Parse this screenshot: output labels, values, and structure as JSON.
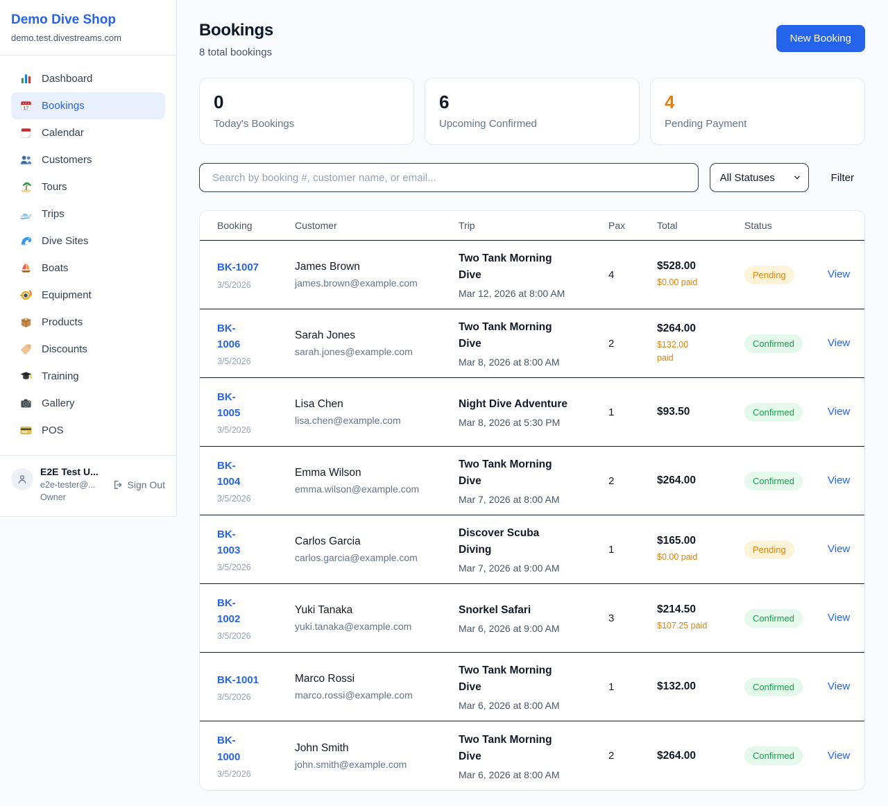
{
  "colors": {
    "accent": "#2563eb",
    "accent_bg": "#e8effd",
    "warn": "#de830e",
    "warn_bg": "#fdf3d8",
    "success": "#16a34a",
    "success_bg": "#e5f8ec",
    "row_divider": "#0f172a",
    "card_border": "#e2e8f0",
    "page_bg": "#f8fafc"
  },
  "sidebar": {
    "brand": {
      "name": "Demo Dive Shop",
      "domain": "demo.test.divestreams.com"
    },
    "items": [
      {
        "label": "Dashboard",
        "icon": "bar-chart-icon",
        "active": false
      },
      {
        "label": "Bookings",
        "icon": "calendar-17-icon",
        "active": true
      },
      {
        "label": "Calendar",
        "icon": "tear-calendar-icon",
        "active": false
      },
      {
        "label": "Customers",
        "icon": "people-icon",
        "active": false
      },
      {
        "label": "Tours",
        "icon": "palm-island-icon",
        "active": false
      },
      {
        "label": "Trips",
        "icon": "speedboat-icon",
        "active": false
      },
      {
        "label": "Dive Sites",
        "icon": "wave-icon",
        "active": false
      },
      {
        "label": "Boats",
        "icon": "sailboat-icon",
        "active": false
      },
      {
        "label": "Equipment",
        "icon": "diving-mask-icon",
        "active": false
      },
      {
        "label": "Products",
        "icon": "box-icon",
        "active": false
      },
      {
        "label": "Discounts",
        "icon": "tag-icon",
        "active": false
      },
      {
        "label": "Training",
        "icon": "grad-cap-icon",
        "active": false
      },
      {
        "label": "Gallery",
        "icon": "camera-icon",
        "active": false
      },
      {
        "label": "POS",
        "icon": "credit-card-icon",
        "active": false
      }
    ],
    "user": {
      "name": "E2E Test U...",
      "email": "e2e-tester@...",
      "role": "Owner",
      "sign_out_label": "Sign Out"
    }
  },
  "header": {
    "title": "Bookings",
    "subtitle": "8 total bookings",
    "new_booking_label": "New Booking"
  },
  "stats": [
    {
      "value": "0",
      "label": "Today's Bookings",
      "highlight": false
    },
    {
      "value": "6",
      "label": "Upcoming Confirmed",
      "highlight": false
    },
    {
      "value": "4",
      "label": "Pending Payment",
      "highlight": true
    }
  ],
  "filters": {
    "search_placeholder": "Search by booking #, customer name, or email...",
    "status_selected": "All Statuses",
    "status_options": [
      "All Statuses"
    ],
    "filter_label": "Filter"
  },
  "table": {
    "columns": [
      "Booking",
      "Customer",
      "Trip",
      "Pax",
      "Total",
      "Status"
    ],
    "view_label": "View",
    "rows": [
      {
        "booking_no": "BK-1007",
        "booking_date": "3/5/2026",
        "customer": "James Brown",
        "email": "james.brown@example.com",
        "trip": "Two Tank Morning\nDive",
        "trip_datetime": "Mar 12, 2026 at 8:00 AM",
        "pax": "4",
        "total": "$528.00",
        "paid": "$0.00 paid",
        "status": "Pending",
        "status_kind": "pending"
      },
      {
        "booking_no": "BK-\n1006",
        "booking_date": "3/5/2026",
        "customer": "Sarah Jones",
        "email": "sarah.jones@example.com",
        "trip": "Two Tank Morning\nDive",
        "trip_datetime": "Mar 8, 2026 at 8:00 AM",
        "pax": "2",
        "total": "$264.00",
        "paid": "$132.00\npaid",
        "status": "Confirmed",
        "status_kind": "confirmed"
      },
      {
        "booking_no": "BK-\n1005",
        "booking_date": "3/5/2026",
        "customer": "Lisa Chen",
        "email": "lisa.chen@example.com",
        "trip": "Night Dive Adventure",
        "trip_datetime": "Mar 8, 2026 at 5:30 PM",
        "pax": "1",
        "total": "$93.50",
        "paid": null,
        "status": "Confirmed",
        "status_kind": "confirmed"
      },
      {
        "booking_no": "BK-\n1004",
        "booking_date": "3/5/2026",
        "customer": "Emma Wilson",
        "email": "emma.wilson@example.com",
        "trip": "Two Tank Morning\nDive",
        "trip_datetime": "Mar 7, 2026 at 8:00 AM",
        "pax": "2",
        "total": "$264.00",
        "paid": null,
        "status": "Confirmed",
        "status_kind": "confirmed"
      },
      {
        "booking_no": "BK-\n1003",
        "booking_date": "3/5/2026",
        "customer": "Carlos Garcia",
        "email": "carlos.garcia@example.com",
        "trip": "Discover Scuba\nDiving",
        "trip_datetime": "Mar 7, 2026 at 9:00 AM",
        "pax": "1",
        "total": "$165.00",
        "paid": "$0.00 paid",
        "status": "Pending",
        "status_kind": "pending"
      },
      {
        "booking_no": "BK-\n1002",
        "booking_date": "3/5/2026",
        "customer": "Yuki Tanaka",
        "email": "yuki.tanaka@example.com",
        "trip": "Snorkel Safari",
        "trip_datetime": "Mar 6, 2026 at 9:00 AM",
        "pax": "3",
        "total": "$214.50",
        "paid": "$107.25 paid",
        "status": "Confirmed",
        "status_kind": "confirmed"
      },
      {
        "booking_no": "BK-1001",
        "booking_date": "3/5/2026",
        "customer": "Marco Rossi",
        "email": "marco.rossi@example.com",
        "trip": "Two Tank Morning\nDive",
        "trip_datetime": "Mar 6, 2026 at 8:00 AM",
        "pax": "1",
        "total": "$132.00",
        "paid": null,
        "status": "Confirmed",
        "status_kind": "confirmed"
      },
      {
        "booking_no": "BK-\n1000",
        "booking_date": "3/5/2026",
        "customer": "John Smith",
        "email": "john.smith@example.com",
        "trip": "Two Tank Morning\nDive",
        "trip_datetime": "Mar 6, 2026 at 8:00 AM",
        "pax": "2",
        "total": "$264.00",
        "paid": null,
        "status": "Confirmed",
        "status_kind": "confirmed"
      }
    ]
  }
}
